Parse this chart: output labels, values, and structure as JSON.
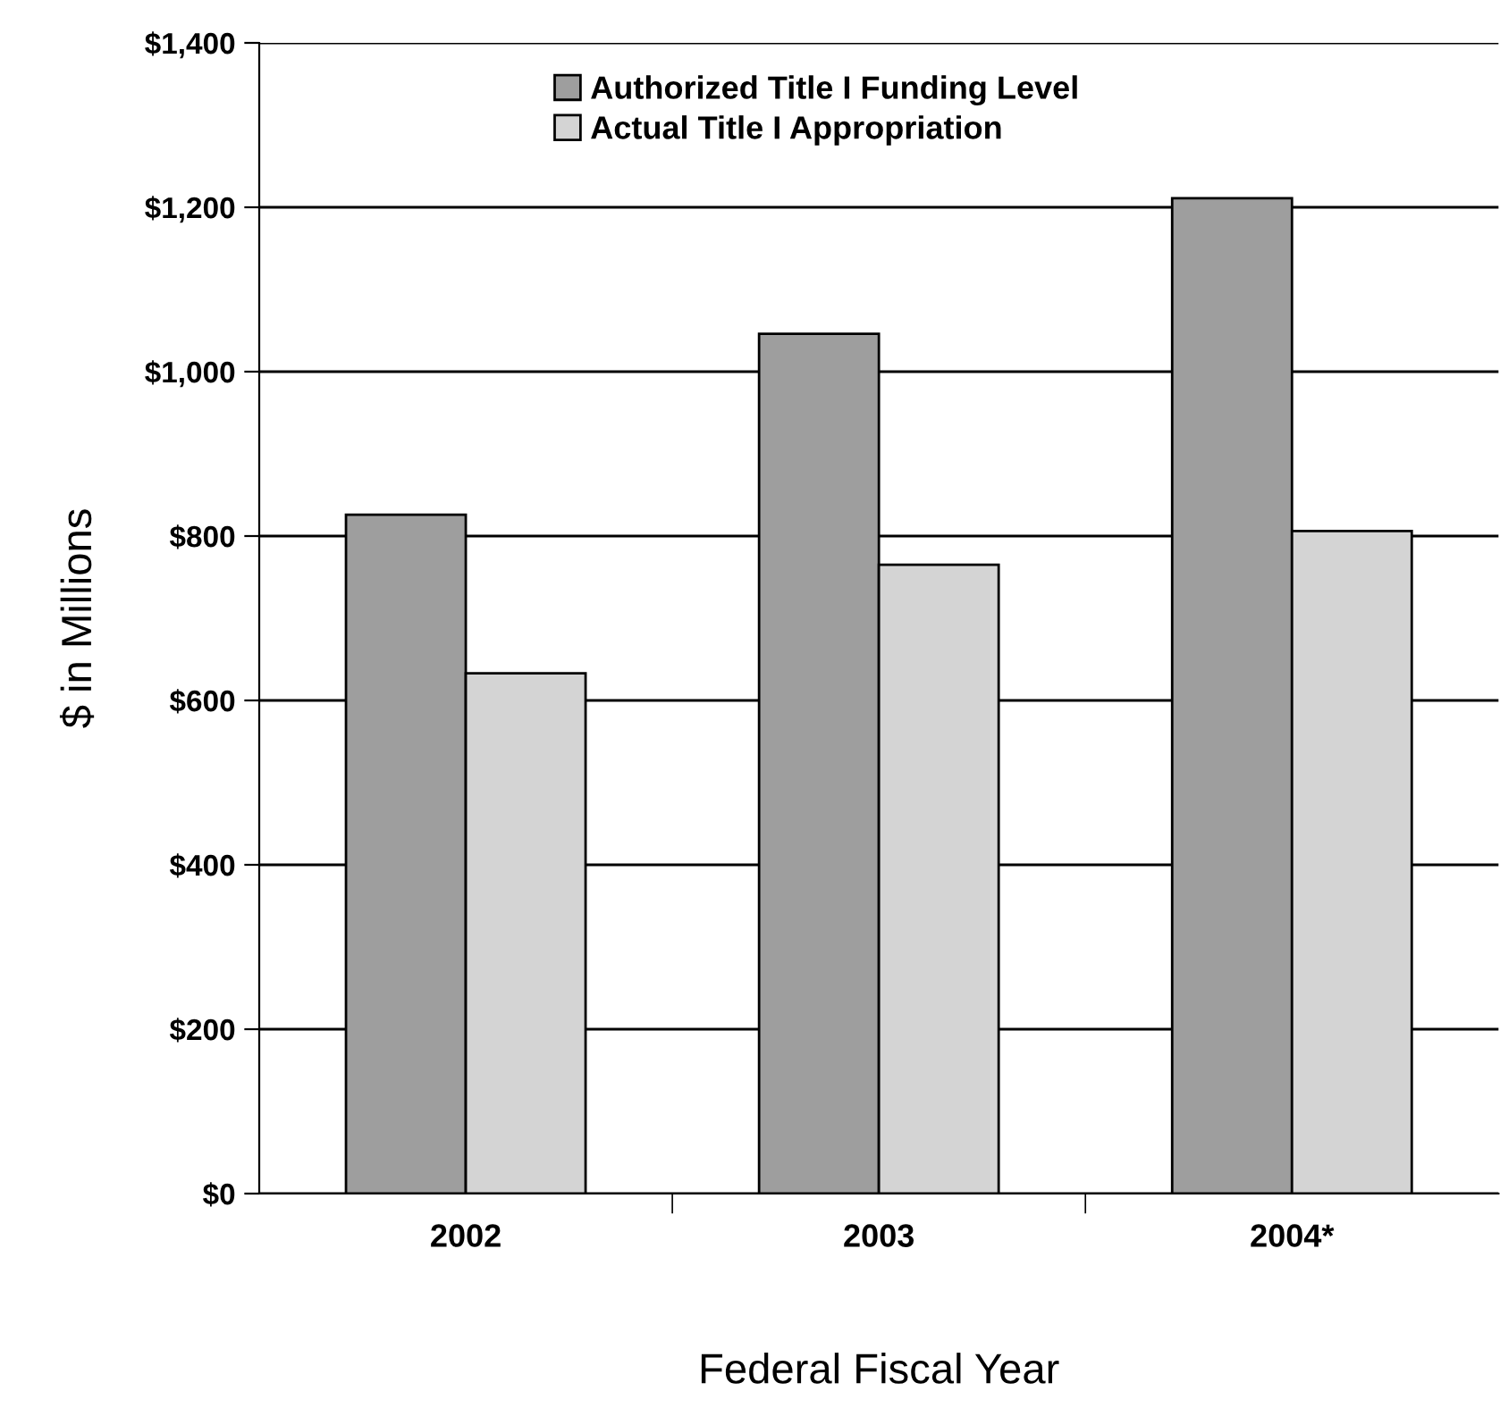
{
  "chart_data": {
    "type": "bar",
    "xlabel": "Federal Fiscal Year",
    "ylabel": "$ in Millions",
    "categories": [
      "2002",
      "2003",
      "2004*"
    ],
    "series": [
      {
        "name": "Authorized Title I Funding Level",
        "color": "#9e9e9e",
        "values": [
          826,
          1046,
          1211
        ]
      },
      {
        "name": "Actual Title I Appropriation",
        "color": "#d4d4d4",
        "values": [
          633,
          765,
          806
        ]
      }
    ],
    "ylim": [
      0,
      1400
    ],
    "yticks": [
      {
        "value": 0,
        "label": "$0"
      },
      {
        "value": 200,
        "label": "$200"
      },
      {
        "value": 400,
        "label": "$400"
      },
      {
        "value": 600,
        "label": "$600"
      },
      {
        "value": 800,
        "label": "$800"
      },
      {
        "value": 1000,
        "label": "$1,000"
      },
      {
        "value": 1200,
        "label": "$1,200"
      },
      {
        "value": 1400,
        "label": "$1,400"
      }
    ],
    "grid": "y",
    "legend": "top"
  }
}
